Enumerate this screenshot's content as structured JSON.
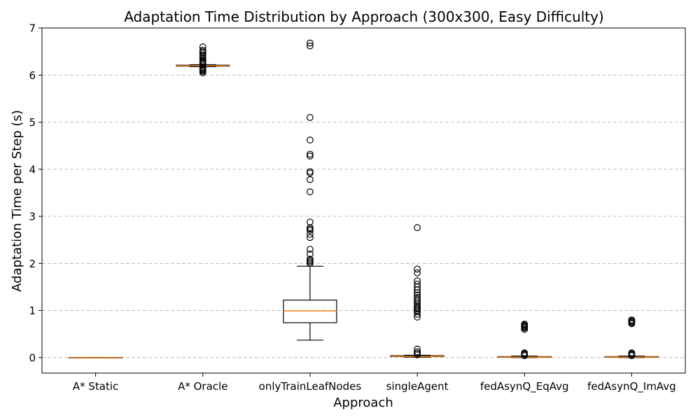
{
  "chart_data": {
    "type": "boxplot",
    "title": "Adaptation Time Distribution by Approach (300x300, Easy Difficulty)",
    "xlabel": "Approach",
    "ylabel": "Adaptation Time per Step (s)",
    "ylim": [
      -0.33,
      7.0
    ],
    "yticks": [
      0,
      1,
      2,
      3,
      4,
      5,
      6,
      7
    ],
    "grid": "y",
    "categories": [
      "A* Static",
      "A* Oracle",
      "onlyTrainLeafNodes",
      "singleAgent",
      "fedAsynQ_EqAvg",
      "fedAsynQ_ImAvg"
    ],
    "boxes": [
      {
        "name": "A* Static",
        "whislo": 0.0,
        "q1": 0.0,
        "median": 0.0,
        "q3": 0.0,
        "whishi": 0.0,
        "fliers": []
      },
      {
        "name": "A* Oracle",
        "whislo": 6.18,
        "q1": 6.19,
        "median": 6.2,
        "q3": 6.21,
        "whishi": 6.22,
        "fliers": [
          6.05,
          6.08,
          6.1,
          6.12,
          6.14,
          6.16,
          6.24,
          6.26,
          6.28,
          6.3,
          6.33,
          6.36,
          6.4,
          6.43,
          6.47,
          6.5,
          6.53,
          6.6
        ]
      },
      {
        "name": "onlyTrainLeafNodes",
        "whislo": 0.37,
        "q1": 0.74,
        "median": 0.99,
        "q3": 1.22,
        "whishi": 1.94,
        "fliers": [
          2.0,
          2.03,
          2.06,
          2.09,
          2.2,
          2.3,
          2.55,
          2.62,
          2.7,
          2.73,
          2.76,
          2.88,
          3.52,
          3.78,
          3.92,
          3.95,
          4.28,
          4.32,
          4.62,
          5.1,
          6.62,
          6.68
        ]
      },
      {
        "name": "singleAgent",
        "whislo": 0.01,
        "q1": 0.02,
        "median": 0.025,
        "q3": 0.04,
        "whishi": 0.05,
        "fliers": [
          0.06,
          0.09,
          0.12,
          0.18,
          0.86,
          0.92,
          0.97,
          1.0,
          1.03,
          1.06,
          1.09,
          1.12,
          1.16,
          1.2,
          1.24,
          1.28,
          1.33,
          1.38,
          1.44,
          1.5,
          1.56,
          1.63,
          1.8,
          1.88,
          2.76
        ]
      },
      {
        "name": "fedAsynQ_EqAvg",
        "whislo": 0.0,
        "q1": 0.005,
        "median": 0.01,
        "q3": 0.02,
        "whishi": 0.03,
        "fliers": [
          0.04,
          0.06,
          0.08,
          0.1,
          0.6,
          0.63,
          0.65,
          0.67,
          0.69,
          0.71
        ]
      },
      {
        "name": "fedAsynQ_ImAvg",
        "whislo": 0.0,
        "q1": 0.005,
        "median": 0.01,
        "q3": 0.02,
        "whishi": 0.03,
        "fliers": [
          0.04,
          0.06,
          0.08,
          0.1,
          0.72,
          0.74,
          0.76,
          0.78,
          0.8
        ]
      }
    ]
  }
}
